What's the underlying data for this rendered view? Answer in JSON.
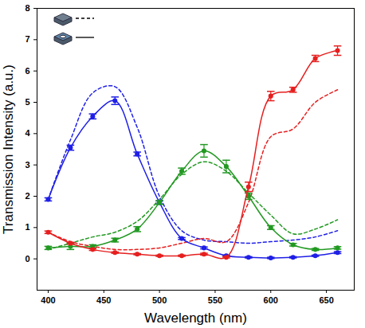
{
  "chart_data": {
    "type": "line",
    "x_label": "Wavelength (nm)",
    "y_label": "Transmission Intensity (a.u.)",
    "x": [
      400,
      420,
      440,
      460,
      480,
      500,
      520,
      540,
      560,
      580,
      600,
      620,
      640,
      660
    ],
    "xlim": [
      390,
      675
    ],
    "xticks": [
      400,
      450,
      500,
      550,
      600,
      650
    ],
    "ylim": [
      -1,
      8
    ],
    "yticks": [
      0,
      1,
      2,
      3,
      4,
      5,
      6,
      7,
      8
    ],
    "legend": "top-left",
    "series": [
      {
        "color": "#1f1fe6",
        "line_style": "dashed",
        "values": [
          1.9,
          3.8,
          5.3,
          5.5,
          4.2,
          2.0,
          0.9,
          0.6,
          0.55,
          0.5,
          0.55,
          0.6,
          0.7,
          0.9
        ]
      },
      {
        "color": "#229922",
        "line_style": "dashed",
        "values": [
          0.3,
          0.5,
          0.7,
          0.85,
          1.2,
          1.9,
          2.7,
          3.1,
          2.8,
          2.1,
          1.4,
          0.8,
          0.95,
          1.25
        ]
      },
      {
        "color": "#e61f1f",
        "line_style": "dashed",
        "values": [
          0.85,
          0.55,
          0.4,
          0.3,
          0.3,
          0.35,
          0.5,
          0.65,
          0.55,
          1.8,
          3.9,
          4.15,
          5.0,
          5.4
        ]
      },
      {
        "color": "#1f1fe6",
        "line_style": "solid",
        "marker": "circle",
        "values": [
          1.9,
          3.55,
          4.55,
          5.05,
          3.35,
          1.8,
          0.65,
          0.35,
          0.1,
          0.05,
          0.03,
          0.05,
          0.1,
          0.2
        ],
        "errors": [
          0.05,
          0.08,
          0.08,
          0.12,
          0.06,
          0.05,
          0.03,
          0.03,
          0.02,
          0.02,
          0.02,
          0.02,
          0.02,
          0.03
        ]
      },
      {
        "color": "#229922",
        "line_style": "solid",
        "marker": "circle",
        "values": [
          0.35,
          0.4,
          0.4,
          0.6,
          0.95,
          1.8,
          2.8,
          3.45,
          2.95,
          2.0,
          1.0,
          0.45,
          0.3,
          0.35
        ],
        "errors": [
          0.05,
          0.1,
          0.05,
          0.06,
          0.08,
          0.06,
          0.1,
          0.2,
          0.2,
          0.1,
          0.06,
          0.04,
          0.03,
          0.04
        ]
      },
      {
        "color": "#e61f1f",
        "line_style": "solid",
        "marker": "circle",
        "values": [
          0.85,
          0.5,
          0.3,
          0.2,
          0.15,
          0.1,
          0.1,
          0.15,
          0.05,
          2.3,
          5.2,
          5.4,
          6.4,
          6.65
        ],
        "errors": [
          0.04,
          0.03,
          0.03,
          0.02,
          0.02,
          0.02,
          0.02,
          0.03,
          0.02,
          0.15,
          0.15,
          0.08,
          0.1,
          0.15
        ]
      }
    ]
  }
}
